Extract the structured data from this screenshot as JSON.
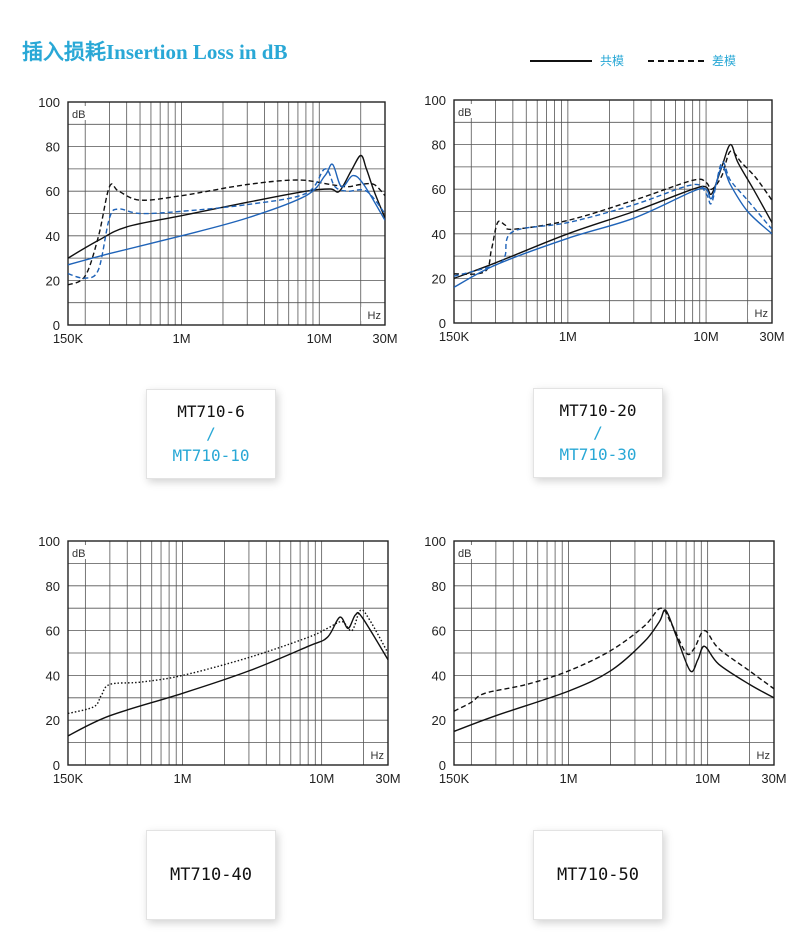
{
  "header": {
    "title": "插入损耗Insertion Loss in dB"
  },
  "legend": {
    "common_mode": "共模",
    "differential_mode": "差模"
  },
  "colors": {
    "accent": "#29a8d6",
    "black_curve": "#111111",
    "blue_curve": "#1f63b8"
  },
  "chart_data": [
    {
      "type": "line",
      "x_scale": "log",
      "xlim": [
        150000,
        30000000
      ],
      "ylim": [
        0,
        100
      ],
      "y_ticks": [
        0,
        20,
        40,
        60,
        80,
        100
      ],
      "x_ticks": [
        {
          "value": 150000,
          "label": "150K"
        },
        {
          "value": 1000000,
          "label": "1M"
        },
        {
          "value": 10000000,
          "label": "10M"
        },
        {
          "value": 30000000,
          "label": "30M"
        }
      ],
      "ylabel": "dB",
      "xlabel": "Hz",
      "grid": true,
      "series": [
        {
          "color": "#111111",
          "dash": "solid",
          "points": [
            [
              150000,
              30
            ],
            [
              250000,
              38
            ],
            [
              400000,
              44
            ],
            [
              1000000,
              49
            ],
            [
              3000000,
              55
            ],
            [
              8000000,
              60
            ],
            [
              12000000,
              61
            ],
            [
              14000000,
              60
            ],
            [
              17000000,
              69
            ],
            [
              20000000,
              76
            ],
            [
              22000000,
              70
            ],
            [
              25000000,
              60
            ],
            [
              30000000,
              48
            ]
          ]
        },
        {
          "color": "#111111",
          "dash": "dashed",
          "points": [
            [
              150000,
              18
            ],
            [
              200000,
              22
            ],
            [
              250000,
              40
            ],
            [
              300000,
              62
            ],
            [
              350000,
              60
            ],
            [
              500000,
              56
            ],
            [
              1000000,
              58
            ],
            [
              3000000,
              63
            ],
            [
              7000000,
              65
            ],
            [
              12000000,
              63
            ],
            [
              16000000,
              62
            ],
            [
              20000000,
              63
            ],
            [
              25000000,
              63
            ],
            [
              30000000,
              58
            ]
          ]
        },
        {
          "color": "#1f63b8",
          "dash": "solid",
          "points": [
            [
              150000,
              27
            ],
            [
              300000,
              32
            ],
            [
              1000000,
              40
            ],
            [
              3000000,
              48
            ],
            [
              8000000,
              58
            ],
            [
              11000000,
              67
            ],
            [
              12500000,
              72
            ],
            [
              14500000,
              62
            ],
            [
              17500000,
              67
            ],
            [
              21000000,
              63
            ],
            [
              30000000,
              47
            ]
          ]
        },
        {
          "color": "#1f63b8",
          "dash": "dashed",
          "points": [
            [
              150000,
              23
            ],
            [
              200000,
              21
            ],
            [
              250000,
              25
            ],
            [
              300000,
              48
            ],
            [
              350000,
              52
            ],
            [
              500000,
              50
            ],
            [
              1000000,
              51
            ],
            [
              3000000,
              54
            ],
            [
              8000000,
              59
            ],
            [
              11000000,
              70
            ],
            [
              13000000,
              62
            ],
            [
              16000000,
              60
            ],
            [
              22000000,
              60
            ],
            [
              30000000,
              50
            ]
          ]
        }
      ]
    },
    {
      "type": "line",
      "x_scale": "log",
      "xlim": [
        150000,
        30000000
      ],
      "ylim": [
        0,
        100
      ],
      "y_ticks": [
        0,
        20,
        40,
        60,
        80,
        100
      ],
      "x_ticks": [
        {
          "value": 150000,
          "label": "150K"
        },
        {
          "value": 1000000,
          "label": "1M"
        },
        {
          "value": 10000000,
          "label": "10M"
        },
        {
          "value": 30000000,
          "label": "30M"
        }
      ],
      "ylabel": "dB",
      "xlabel": "Hz",
      "grid": true,
      "series": [
        {
          "color": "#111111",
          "dash": "solid",
          "points": [
            [
              150000,
              20
            ],
            [
              300000,
              27
            ],
            [
              1000000,
              40
            ],
            [
              3000000,
              50
            ],
            [
              8000000,
              60
            ],
            [
              10000000,
              61
            ],
            [
              11000000,
              58
            ],
            [
              13000000,
              70
            ],
            [
              15000000,
              80
            ],
            [
              17000000,
              72
            ],
            [
              22000000,
              60
            ],
            [
              30000000,
              45
            ]
          ]
        },
        {
          "color": "#111111",
          "dash": "dashed",
          "points": [
            [
              150000,
              22
            ],
            [
              250000,
              23
            ],
            [
              280000,
              33
            ],
            [
              310000,
              45
            ],
            [
              350000,
              44
            ],
            [
              400000,
              42
            ],
            [
              1000000,
              46
            ],
            [
              3000000,
              55
            ],
            [
              8000000,
              64
            ],
            [
              10000000,
              63
            ],
            [
              11000000,
              60
            ],
            [
              13000000,
              66
            ],
            [
              15000000,
              77
            ],
            [
              18000000,
              72
            ],
            [
              23000000,
              65
            ],
            [
              30000000,
              55
            ]
          ]
        },
        {
          "color": "#1f63b8",
          "dash": "solid",
          "points": [
            [
              150000,
              16
            ],
            [
              300000,
              26
            ],
            [
              1000000,
              38
            ],
            [
              3000000,
              47
            ],
            [
              8000000,
              59
            ],
            [
              10000000,
              60
            ],
            [
              11000000,
              56
            ],
            [
              13000000,
              70
            ],
            [
              15000000,
              62
            ],
            [
              20000000,
              50
            ],
            [
              30000000,
              40
            ]
          ]
        },
        {
          "color": "#1f63b8",
          "dash": "dashed",
          "points": [
            [
              150000,
              21
            ],
            [
              300000,
              26
            ],
            [
              350000,
              30
            ],
            [
              400000,
              41
            ],
            [
              1000000,
              45
            ],
            [
              3000000,
              53
            ],
            [
              8000000,
              62
            ],
            [
              10000000,
              58
            ],
            [
              11000000,
              54
            ],
            [
              13000000,
              72
            ],
            [
              15000000,
              64
            ],
            [
              20000000,
              55
            ],
            [
              30000000,
              42
            ]
          ]
        }
      ]
    },
    {
      "type": "line",
      "x_scale": "log",
      "xlim": [
        150000,
        30000000
      ],
      "ylim": [
        0,
        100
      ],
      "y_ticks": [
        0,
        20,
        40,
        60,
        80,
        100
      ],
      "x_ticks": [
        {
          "value": 150000,
          "label": "150K"
        },
        {
          "value": 1000000,
          "label": "1M"
        },
        {
          "value": 10000000,
          "label": "10M"
        },
        {
          "value": 30000000,
          "label": "30M"
        }
      ],
      "ylabel": "dB",
      "xlabel": "Hz",
      "grid": true,
      "series": [
        {
          "color": "#111111",
          "dash": "solid",
          "points": [
            [
              150000,
              13
            ],
            [
              300000,
              22
            ],
            [
              1000000,
              32
            ],
            [
              3000000,
              42
            ],
            [
              8000000,
              53
            ],
            [
              11000000,
              57
            ],
            [
              13500000,
              66
            ],
            [
              15500000,
              61
            ],
            [
              17500000,
              67
            ],
            [
              19500000,
              66
            ],
            [
              30000000,
              47
            ]
          ]
        },
        {
          "color": "#111111",
          "dash": "dotted",
          "points": [
            [
              150000,
              23
            ],
            [
              230000,
              26
            ],
            [
              260000,
              31
            ],
            [
              300000,
              36
            ],
            [
              500000,
              37
            ],
            [
              1000000,
              40
            ],
            [
              3000000,
              48
            ],
            [
              8000000,
              57
            ],
            [
              11000000,
              61
            ],
            [
              14000000,
              64
            ],
            [
              16500000,
              60
            ],
            [
              19000000,
              69
            ],
            [
              22000000,
              65
            ],
            [
              30000000,
              50
            ]
          ]
        }
      ]
    },
    {
      "type": "line",
      "x_scale": "log",
      "xlim": [
        150000,
        30000000
      ],
      "ylim": [
        0,
        100
      ],
      "y_ticks": [
        0,
        20,
        40,
        60,
        80,
        100
      ],
      "x_ticks": [
        {
          "value": 150000,
          "label": "150K"
        },
        {
          "value": 1000000,
          "label": "1M"
        },
        {
          "value": 10000000,
          "label": "10M"
        },
        {
          "value": 30000000,
          "label": "30M"
        }
      ],
      "ylabel": "dB",
      "xlabel": "Hz",
      "grid": true,
      "series": [
        {
          "color": "#111111",
          "dash": "solid",
          "points": [
            [
              150000,
              15
            ],
            [
              300000,
              22
            ],
            [
              1000000,
              33
            ],
            [
              2000000,
              42
            ],
            [
              3500000,
              55
            ],
            [
              4500000,
              64
            ],
            [
              5000000,
              69
            ],
            [
              6000000,
              57
            ],
            [
              7500000,
              42
            ],
            [
              8500000,
              47
            ],
            [
              9500000,
              53
            ],
            [
              12000000,
              45
            ],
            [
              20000000,
              36
            ],
            [
              30000000,
              30
            ]
          ]
        },
        {
          "color": "#111111",
          "dash": "dashed",
          "points": [
            [
              150000,
              24
            ],
            [
              200000,
              28
            ],
            [
              250000,
              32
            ],
            [
              500000,
              36
            ],
            [
              1000000,
              42
            ],
            [
              2000000,
              51
            ],
            [
              3500000,
              62
            ],
            [
              4600000,
              70
            ],
            [
              5500000,
              63
            ],
            [
              7000000,
              50
            ],
            [
              8000000,
              52
            ],
            [
              9500000,
              60
            ],
            [
              12000000,
              52
            ],
            [
              20000000,
              42
            ],
            [
              30000000,
              34
            ]
          ]
        }
      ]
    }
  ],
  "models": [
    {
      "primary": "MT710-6",
      "separator": "/",
      "secondary": "MT710-10"
    },
    {
      "primary": "MT710-20",
      "separator": "/",
      "secondary": "MT710-30"
    },
    {
      "primary": "MT710-40"
    },
    {
      "primary": "MT710-50"
    }
  ]
}
